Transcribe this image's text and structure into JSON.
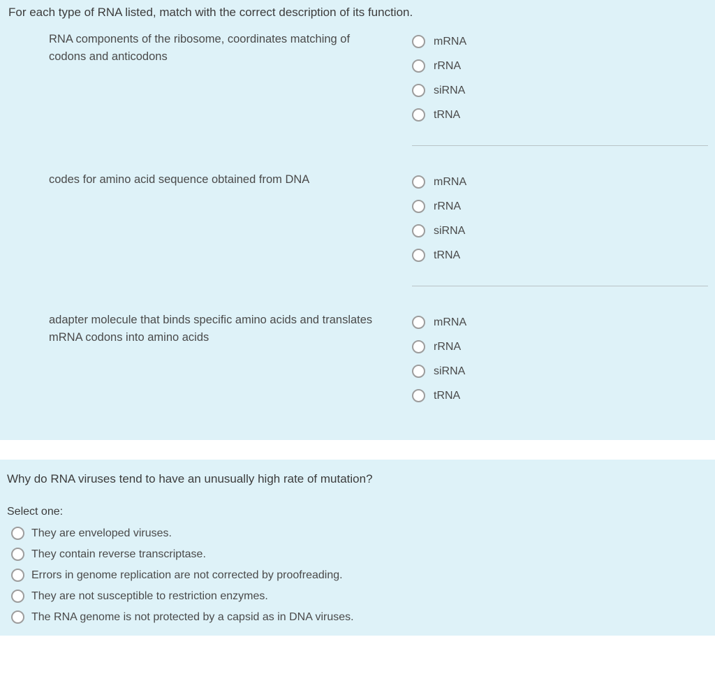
{
  "question1": {
    "prompt": "For each type of RNA listed, match with the correct description of its function.",
    "items": [
      {
        "description": "RNA components of the ribosome, coordinates matching of codons and anticodons",
        "options": [
          "mRNA",
          "rRNA",
          "siRNA",
          "tRNA"
        ]
      },
      {
        "description": "codes for amino acid sequence obtained from DNA",
        "options": [
          "mRNA",
          "rRNA",
          "siRNA",
          "tRNA"
        ]
      },
      {
        "description": "adapter molecule that binds specific amino acids and translates mRNA codons into amino acids",
        "options": [
          "mRNA",
          "rRNA",
          "siRNA",
          "tRNA"
        ]
      }
    ]
  },
  "question2": {
    "prompt": "Why do RNA viruses tend to have an unusually high rate of mutation?",
    "select_label": "Select one:",
    "options": [
      "They are enveloped viruses.",
      "They contain reverse transcriptase.",
      "Errors in genome replication are not corrected by proofreading.",
      "They are not susceptible to restriction enzymes.",
      "The RNA genome is not protected by a capsid as in DNA viruses."
    ]
  },
  "colors": {
    "panel_bg": "#def2f8",
    "text": "#4a4a4a",
    "prompt_text": "#3c3c3c",
    "radio_border": "#9d9d9d",
    "divider": "#b9c3c7",
    "page_bg": "#ffffff"
  }
}
